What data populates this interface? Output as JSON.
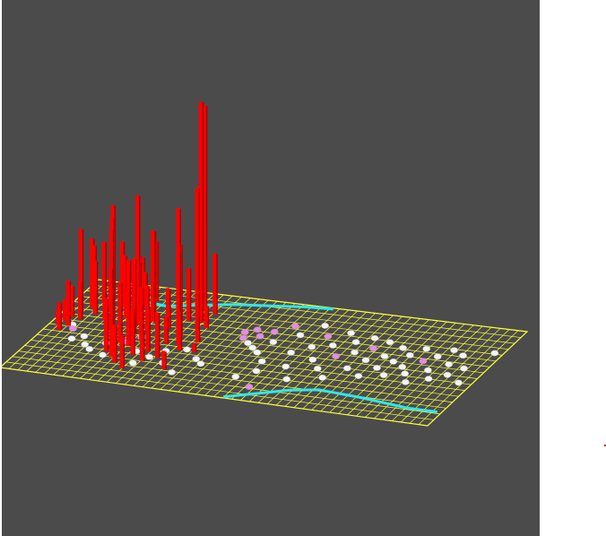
{
  "scene": {
    "background_color": "#4b4b4b",
    "panel_color": "#ffffff",
    "grid": {
      "color": "#ffff3a",
      "cols": 48,
      "rows": 16
    },
    "bar_color": "#ff0000",
    "path_color": "#2ee8e8",
    "marker_colors": {
      "white": "#f4f4f4",
      "pink": "#e58ae3"
    },
    "bars": [
      [
        0.04,
        0.5,
        0.1
      ],
      [
        0.05,
        0.45,
        0.14
      ],
      [
        0.06,
        0.4,
        0.2
      ],
      [
        0.07,
        0.55,
        0.18
      ],
      [
        0.08,
        0.35,
        0.55
      ],
      [
        0.09,
        0.5,
        0.3
      ],
      [
        0.1,
        0.28,
        0.45
      ],
      [
        0.11,
        0.42,
        0.25
      ],
      [
        0.12,
        0.3,
        0.42
      ],
      [
        0.13,
        0.22,
        0.4
      ],
      [
        0.14,
        0.15,
        0.6
      ],
      [
        0.15,
        0.35,
        0.35
      ],
      [
        0.16,
        0.2,
        0.55
      ],
      [
        0.17,
        0.12,
        0.35
      ],
      [
        0.18,
        0.25,
        0.5
      ],
      [
        0.19,
        0.1,
        0.2
      ],
      [
        0.2,
        0.3,
        0.28
      ],
      [
        0.21,
        0.18,
        0.3
      ],
      [
        0.22,
        0.4,
        0.15
      ],
      [
        0.24,
        0.25,
        0.12
      ],
      [
        0.26,
        0.1,
        0.25
      ],
      [
        0.28,
        0.5,
        0.12
      ],
      [
        0.3,
        0.35,
        0.18
      ],
      [
        0.32,
        0.2,
        0.22
      ],
      [
        0.33,
        0.55,
        0.3
      ],
      [
        0.34,
        0.3,
        0.35
      ],
      [
        0.35,
        0.15,
        0.4
      ],
      [
        0.36,
        0.45,
        0.45
      ],
      [
        0.37,
        0.22,
        0.5
      ],
      [
        0.37,
        0.7,
        0.35
      ],
      [
        0.38,
        0.4,
        0.85
      ],
      [
        0.39,
        0.6,
        0.4
      ],
      [
        0.4,
        0.28,
        0.55
      ],
      [
        0.41,
        0.5,
        0.5
      ],
      [
        0.42,
        0.75,
        0.45
      ],
      [
        0.43,
        0.35,
        0.6
      ],
      [
        0.44,
        0.62,
        0.38
      ],
      [
        0.45,
        0.45,
        0.3
      ],
      [
        0.46,
        0.8,
        0.25
      ],
      [
        0.47,
        0.55,
        0.35
      ],
      [
        0.48,
        0.3,
        0.2
      ],
      [
        0.5,
        0.7,
        0.3
      ],
      [
        0.52,
        0.85,
        0.22
      ],
      [
        0.53,
        0.4,
        0.15
      ],
      [
        0.55,
        0.65,
        0.28
      ],
      [
        0.57,
        0.75,
        0.2
      ],
      [
        0.58,
        0.3,
        0.35
      ],
      [
        0.59,
        0.55,
        0.18
      ],
      [
        0.6,
        0.18,
        1.35
      ],
      [
        0.61,
        0.45,
        0.6
      ],
      [
        0.62,
        0.7,
        0.3
      ],
      [
        0.64,
        0.3,
        1.45
      ],
      [
        0.65,
        0.55,
        0.9
      ],
      [
        0.66,
        0.2,
        0.4
      ],
      [
        0.67,
        0.4,
        0.95
      ],
      [
        0.68,
        0.6,
        0.25
      ],
      [
        0.69,
        0.35,
        0.15
      ],
      [
        0.7,
        0.8,
        0.12
      ],
      [
        0.72,
        0.5,
        0.08
      ],
      [
        0.75,
        0.6,
        0.06
      ]
    ],
    "markers": [
      [
        0.05,
        0.48,
        "white"
      ],
      [
        0.06,
        0.52,
        "pink"
      ],
      [
        0.08,
        0.62,
        "white"
      ],
      [
        0.1,
        0.58,
        "white"
      ],
      [
        0.12,
        0.66,
        "white"
      ],
      [
        0.14,
        0.7,
        "white"
      ],
      [
        0.16,
        0.62,
        "white"
      ],
      [
        0.18,
        0.74,
        "white"
      ],
      [
        0.2,
        0.58,
        "pink"
      ],
      [
        0.22,
        0.52,
        "pink"
      ],
      [
        0.24,
        0.66,
        "white"
      ],
      [
        0.26,
        0.78,
        "white"
      ],
      [
        0.28,
        0.7,
        "white"
      ],
      [
        0.3,
        0.62,
        "white"
      ],
      [
        0.32,
        0.74,
        "white"
      ],
      [
        0.34,
        0.58,
        "white"
      ],
      [
        0.36,
        0.82,
        "white"
      ],
      [
        0.38,
        0.66,
        "white"
      ],
      [
        0.4,
        0.7,
        "white"
      ],
      [
        0.42,
        0.34,
        "pink"
      ],
      [
        0.43,
        0.4,
        "pink"
      ],
      [
        0.44,
        0.3,
        "pink"
      ],
      [
        0.45,
        0.44,
        "white"
      ],
      [
        0.46,
        0.36,
        "pink"
      ],
      [
        0.47,
        0.48,
        "white"
      ],
      [
        0.48,
        0.3,
        "pink"
      ],
      [
        0.49,
        0.52,
        "white"
      ],
      [
        0.5,
        0.4,
        "white"
      ],
      [
        0.5,
        0.78,
        "white"
      ],
      [
        0.51,
        0.22,
        "pink"
      ],
      [
        0.52,
        0.6,
        "white"
      ],
      [
        0.53,
        0.7,
        "white"
      ],
      [
        0.54,
        0.3,
        "white"
      ],
      [
        0.55,
        0.86,
        "pink"
      ],
      [
        0.56,
        0.48,
        "white"
      ],
      [
        0.57,
        0.18,
        "white"
      ],
      [
        0.58,
        0.62,
        "white"
      ],
      [
        0.59,
        0.4,
        "white"
      ],
      [
        0.6,
        0.28,
        "pink"
      ],
      [
        0.61,
        0.74,
        "white"
      ],
      [
        0.62,
        0.52,
        "white"
      ],
      [
        0.63,
        0.36,
        "white"
      ],
      [
        0.64,
        0.22,
        "white"
      ],
      [
        0.65,
        0.6,
        "white"
      ],
      [
        0.66,
        0.46,
        "pink"
      ],
      [
        0.67,
        0.3,
        "white"
      ],
      [
        0.68,
        0.68,
        "white"
      ],
      [
        0.69,
        0.4,
        "white"
      ],
      [
        0.7,
        0.24,
        "white"
      ],
      [
        0.71,
        0.56,
        "white"
      ],
      [
        0.72,
        0.34,
        "pink"
      ],
      [
        0.73,
        0.46,
        "white"
      ],
      [
        0.74,
        0.26,
        "white"
      ],
      [
        0.75,
        0.62,
        "white"
      ],
      [
        0.76,
        0.4,
        "white"
      ],
      [
        0.77,
        0.52,
        "white"
      ],
      [
        0.78,
        0.3,
        "white"
      ],
      [
        0.79,
        0.44,
        "white"
      ],
      [
        0.8,
        0.58,
        "white"
      ],
      [
        0.81,
        0.36,
        "white"
      ],
      [
        0.82,
        0.48,
        "white"
      ],
      [
        0.83,
        0.28,
        "white"
      ],
      [
        0.84,
        0.54,
        "white"
      ],
      [
        0.85,
        0.4,
        "pink"
      ],
      [
        0.86,
        0.62,
        "white"
      ],
      [
        0.87,
        0.34,
        "white"
      ],
      [
        0.88,
        0.48,
        "white"
      ],
      [
        0.89,
        0.26,
        "white"
      ],
      [
        0.9,
        0.56,
        "white"
      ],
      [
        0.91,
        0.4,
        "white"
      ],
      [
        0.92,
        0.3,
        "white"
      ],
      [
        0.93,
        0.5,
        "white"
      ],
      [
        0.95,
        0.42,
        "white"
      ],
      [
        0.97,
        0.56,
        "white"
      ],
      [
        0.98,
        0.24,
        "white"
      ]
    ],
    "path_upper": [
      [
        0.14,
        0.16
      ],
      [
        0.2,
        0.18
      ],
      [
        0.28,
        0.12
      ],
      [
        0.34,
        0.08
      ],
      [
        0.42,
        0.05
      ],
      [
        0.49,
        0.02
      ],
      [
        0.55,
        0.01
      ]
    ],
    "path_lower": [
      [
        0.52,
        0.99
      ],
      [
        0.56,
        0.94
      ],
      [
        0.64,
        0.84
      ],
      [
        0.7,
        0.8
      ],
      [
        0.8,
        0.82
      ],
      [
        0.92,
        0.86
      ],
      [
        0.99,
        0.86
      ]
    ]
  }
}
